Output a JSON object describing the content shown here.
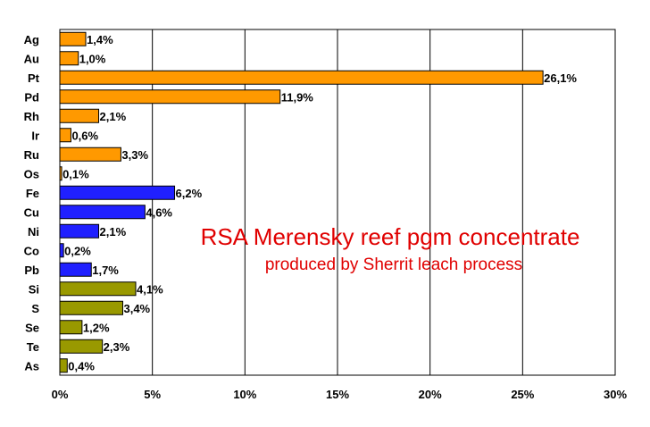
{
  "chart_data": {
    "type": "bar",
    "orientation": "horizontal",
    "title": "RSA Merensky reef pgm concentrate",
    "subtitle": "produced by Sherrit leach process",
    "xlabel": "",
    "ylabel": "",
    "xlim": [
      0,
      30
    ],
    "x_ticks": [
      "0%",
      "5%",
      "10%",
      "15%",
      "20%",
      "25%",
      "30%"
    ],
    "grid": "vertical",
    "legend": "none",
    "categories": [
      "Ag",
      "Au",
      "Pt",
      "Pd",
      "Rh",
      "Ir",
      "Ru",
      "Os",
      "Fe",
      "Cu",
      "Ni",
      "Co",
      "Pb",
      "Si",
      "S",
      "Se",
      "Te",
      "As"
    ],
    "values": [
      1.4,
      1.0,
      26.1,
      11.9,
      2.1,
      0.6,
      3.3,
      0.1,
      6.2,
      4.6,
      2.1,
      0.2,
      1.7,
      4.1,
      3.4,
      1.2,
      2.3,
      0.4
    ],
    "data_labels": [
      "1,4%",
      "1,0%",
      "26,1%",
      "11,9%",
      "2,1%",
      "0,6%",
      "3,3%",
      "0,1%",
      "6,2%",
      "4,6%",
      "2,1%",
      "0,2%",
      "1,7%",
      "4,1%",
      "3,4%",
      "1,2%",
      "2,3%",
      "0,4%"
    ],
    "bar_colors": [
      "#ff9900",
      "#ff9900",
      "#ff9900",
      "#ff9900",
      "#ff9900",
      "#ff9900",
      "#ff9900",
      "#ff9900",
      "#2020ff",
      "#2020ff",
      "#2020ff",
      "#2020ff",
      "#2020ff",
      "#999900",
      "#999900",
      "#999900",
      "#999900",
      "#999900"
    ],
    "title_color": "#e00000"
  }
}
